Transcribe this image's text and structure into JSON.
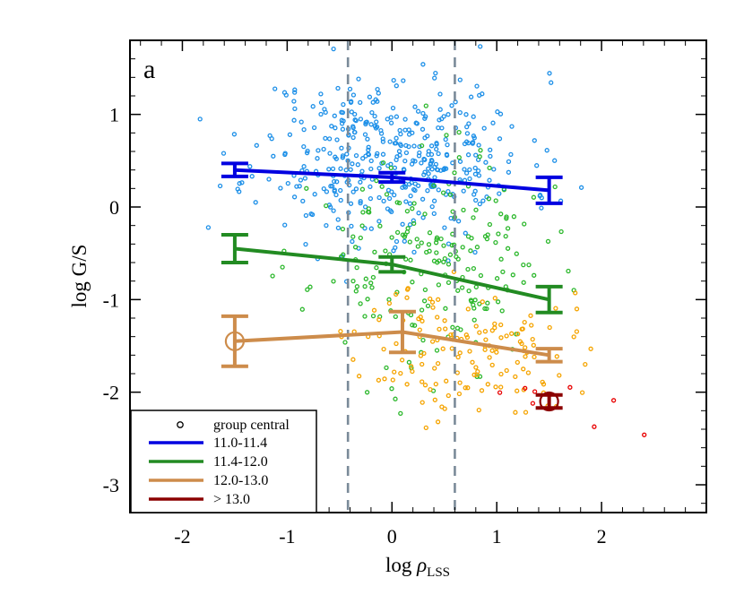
{
  "chart_data": {
    "type": "scatter",
    "panel_label": "a",
    "xlabel_main": "log ",
    "xlabel_rho": "ρ",
    "xlabel_sub": "LSS",
    "ylabel": "log G/S",
    "xlim": [
      -2.5,
      3.0
    ],
    "ylim": [
      -3.3,
      1.8
    ],
    "xticks": [
      -2,
      -1,
      0,
      1,
      2
    ],
    "yticks": [
      -3,
      -2,
      -1,
      0,
      1
    ],
    "vlines": [
      -0.42,
      0.6
    ],
    "legend": {
      "placement": "bottom-left",
      "marker_entry": "group central",
      "entries": [
        "11.0-11.4",
        "11.4-12.0",
        "12.0-13.0",
        "> 13.0"
      ]
    },
    "series": [
      {
        "name": "11.0-11.4",
        "color": "#0000e0",
        "point_color": "#1e90e8",
        "x": [
          -1.5,
          0.0,
          1.5
        ],
        "y": [
          0.4,
          0.32,
          0.18
        ],
        "yerr": [
          0.07,
          0.05,
          0.14
        ],
        "central_marker": [
          false,
          false,
          false
        ]
      },
      {
        "name": "11.4-12.0",
        "color": "#228b22",
        "point_color": "#2db82d",
        "x": [
          -1.5,
          0.0,
          1.5
        ],
        "y": [
          -0.45,
          -0.62,
          -1.0
        ],
        "yerr": [
          0.15,
          0.08,
          0.14
        ],
        "central_marker": [
          false,
          false,
          false
        ]
      },
      {
        "name": "12.0-13.0",
        "color": "#cd8c4b",
        "point_color": "#f5a400",
        "x": [
          -1.5,
          0.1,
          1.5
        ],
        "y": [
          -1.45,
          -1.35,
          -1.6
        ],
        "yerr": [
          0.27,
          0.22,
          0.07
        ],
        "central_marker": [
          true,
          false,
          false
        ]
      },
      {
        "name": "> 13.0",
        "color": "#8b0000",
        "point_color": "#e80000",
        "x": [
          1.5
        ],
        "y": [
          -2.1
        ],
        "yerr": [
          0.07
        ],
        "central_marker": [
          true
        ]
      }
    ],
    "scatter": [
      {
        "name": "11.0-11.4",
        "center": [
          0.0,
          0.55
        ],
        "spread": [
          0.65,
          0.45
        ],
        "count": 430,
        "seed": 11
      },
      {
        "name": "11.4-12.0",
        "center": [
          0.35,
          -0.6
        ],
        "spread": [
          0.55,
          0.55
        ],
        "count": 210,
        "seed": 23
      },
      {
        "name": "12.0-13.0",
        "center": [
          0.7,
          -1.55
        ],
        "spread": [
          0.5,
          0.35
        ],
        "count": 150,
        "seed": 37
      },
      {
        "name": "> 13.0",
        "center": [
          1.7,
          -2.1
        ],
        "spread": [
          0.5,
          0.25
        ],
        "count": 8,
        "seed": 53
      }
    ]
  }
}
